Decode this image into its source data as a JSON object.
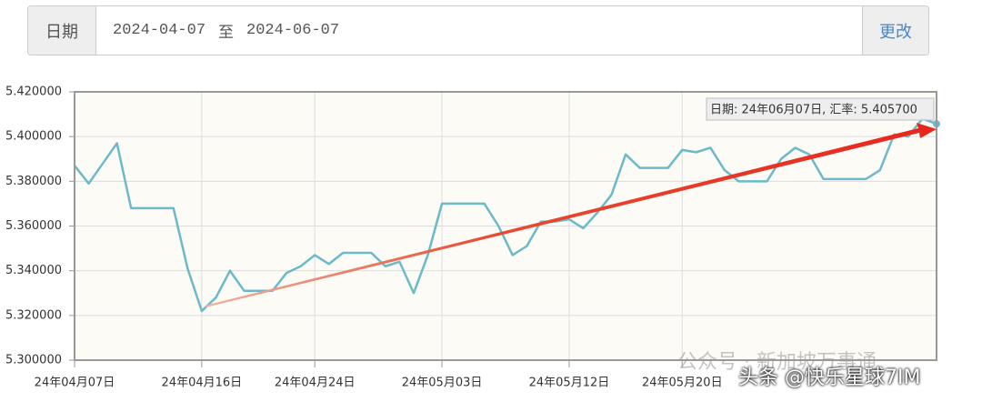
{
  "date_bar": {
    "label": "日期",
    "start": "2024-04-07",
    "separator": "至",
    "end": "2024-06-07",
    "button": "更改"
  },
  "watermarks": [
    "公众号 · 新加坡万事通",
    "头条 @快乐星球7IM"
  ],
  "chart_data": {
    "type": "line",
    "tooltip": "日期: 24年06月07日, 汇率: 5.405700",
    "categories": [
      "24年04月07日",
      null,
      null,
      null,
      null,
      null,
      null,
      null,
      null,
      "24年04月16日",
      null,
      null,
      null,
      null,
      null,
      null,
      null,
      "24年04月24日",
      null,
      null,
      null,
      null,
      null,
      null,
      null,
      null,
      "24年05月03日",
      null,
      null,
      null,
      null,
      null,
      null,
      null,
      null,
      "24年05月12日",
      null,
      null,
      null,
      null,
      null,
      null,
      null,
      "24年05月20日",
      null,
      null,
      null,
      null,
      null,
      null,
      null,
      null,
      null,
      null,
      null,
      null,
      null,
      null,
      null,
      null,
      null,
      null
    ],
    "series": [
      {
        "name": "汇率",
        "color": "#6cb9c9",
        "values": [
          5.387,
          5.379,
          5.388,
          5.397,
          5.368,
          5.368,
          5.368,
          5.368,
          5.341,
          5.322,
          5.328,
          5.34,
          5.331,
          5.331,
          5.331,
          5.339,
          5.342,
          5.347,
          5.343,
          5.348,
          5.348,
          5.348,
          5.342,
          5.344,
          5.33,
          5.347,
          5.37,
          5.37,
          5.37,
          5.37,
          5.36,
          5.347,
          5.351,
          5.362,
          5.362,
          5.363,
          5.359,
          5.366,
          5.374,
          5.392,
          5.386,
          5.386,
          5.386,
          5.394,
          5.393,
          5.395,
          5.385,
          5.38,
          5.38,
          5.38,
          5.39,
          5.395,
          5.392,
          5.381,
          5.381,
          5.381,
          5.381,
          5.385,
          5.401,
          5.4,
          5.408,
          5.4057
        ]
      }
    ],
    "ylim": [
      5.3,
      5.42
    ],
    "yticks": [
      {
        "value": 5.3,
        "label": "5.300000"
      },
      {
        "value": 5.32,
        "label": "5.320000"
      },
      {
        "value": 5.34,
        "label": "5.340000"
      },
      {
        "value": 5.36,
        "label": "5.360000"
      },
      {
        "value": 5.38,
        "label": "5.380000"
      },
      {
        "value": 5.4,
        "label": "5.400000"
      },
      {
        "value": 5.42,
        "label": "5.420000"
      }
    ],
    "grid": true
  }
}
